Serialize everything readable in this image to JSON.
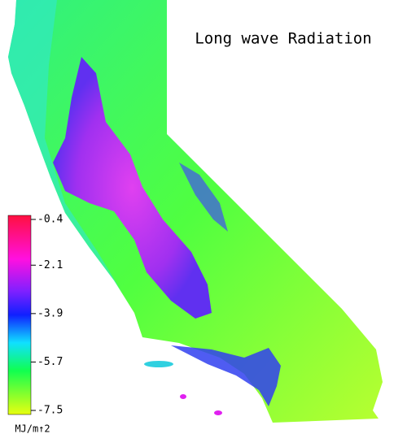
{
  "title": "Long wave Radiation",
  "colorbar": {
    "lim": [
      -7.5,
      -0.4
    ],
    "ticks": [
      -0.4,
      -2.1,
      -3.9,
      -5.7,
      -7.5
    ],
    "unit": "MJ/m↑2"
  }
}
